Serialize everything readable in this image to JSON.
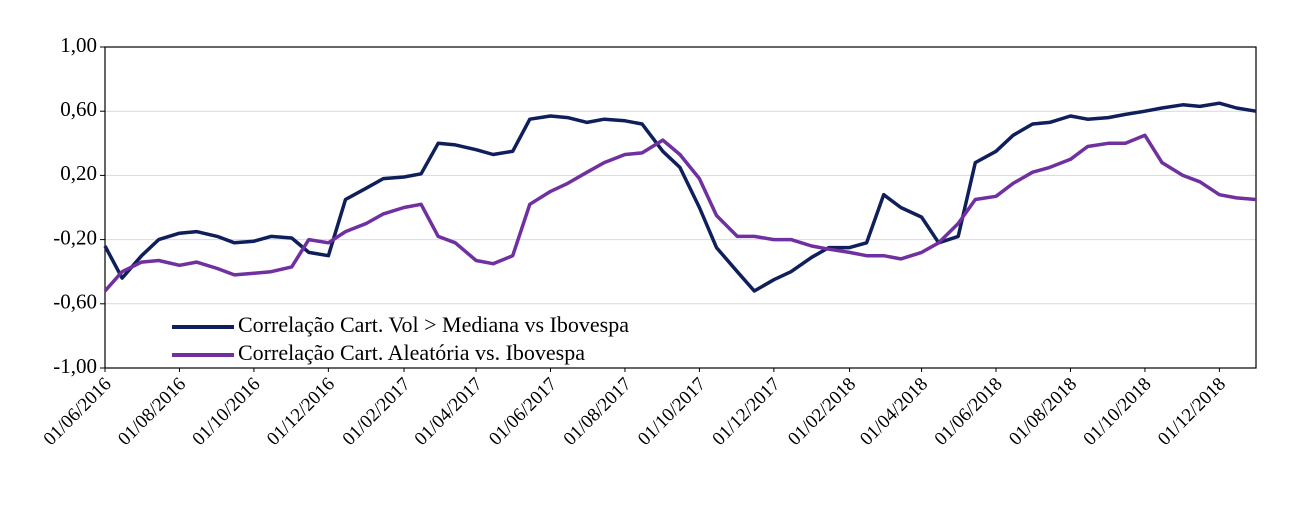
{
  "chart_data": {
    "type": "line",
    "x": [
      "2016-06-01",
      "2016-06-15",
      "2016-07-01",
      "2016-07-15",
      "2016-08-01",
      "2016-08-15",
      "2016-09-01",
      "2016-09-15",
      "2016-10-01",
      "2016-10-15",
      "2016-11-01",
      "2016-11-15",
      "2016-12-01",
      "2016-12-15",
      "2017-01-01",
      "2017-01-15",
      "2017-02-01",
      "2017-02-15",
      "2017-03-01",
      "2017-03-15",
      "2017-04-01",
      "2017-04-15",
      "2017-05-01",
      "2017-05-15",
      "2017-06-01",
      "2017-06-15",
      "2017-07-01",
      "2017-07-15",
      "2017-08-01",
      "2017-08-15",
      "2017-09-01",
      "2017-09-15",
      "2017-10-01",
      "2017-10-15",
      "2017-11-01",
      "2017-11-15",
      "2017-12-01",
      "2017-12-15",
      "2018-01-01",
      "2018-01-15",
      "2018-02-01",
      "2018-02-15",
      "2018-03-01",
      "2018-03-15",
      "2018-04-01",
      "2018-04-15",
      "2018-05-01",
      "2018-05-15",
      "2018-06-01",
      "2018-06-15",
      "2018-07-01",
      "2018-07-15",
      "2018-08-01",
      "2018-08-15",
      "2018-09-01",
      "2018-09-15",
      "2018-10-01",
      "2018-10-15",
      "2018-11-01",
      "2018-11-15",
      "2018-12-01",
      "2018-12-15",
      "2018-12-31"
    ],
    "series": [
      {
        "name": "Correlação Cart. Vol > Mediana vs Ibovespa",
        "color": "#0f1f5c",
        "values": [
          -0.24,
          -0.44,
          -0.3,
          -0.2,
          -0.16,
          -0.15,
          -0.18,
          -0.22,
          -0.21,
          -0.18,
          -0.19,
          -0.28,
          -0.3,
          0.05,
          0.12,
          0.18,
          0.19,
          0.21,
          0.4,
          0.39,
          0.36,
          0.33,
          0.35,
          0.55,
          0.57,
          0.56,
          0.53,
          0.55,
          0.54,
          0.52,
          0.35,
          0.25,
          0.0,
          -0.25,
          -0.4,
          -0.52,
          -0.45,
          -0.4,
          -0.31,
          -0.25,
          -0.25,
          -0.22,
          0.08,
          0.0,
          -0.06,
          -0.22,
          -0.18,
          0.28,
          0.35,
          0.45,
          0.52,
          0.53,
          0.57,
          0.55,
          0.56,
          0.58,
          0.6,
          0.62,
          0.64,
          0.63,
          0.65,
          0.62,
          0.6
        ]
      },
      {
        "name": "Correlação Cart. Aleatória vs. Ibovespa",
        "color": "#7030a0",
        "values": [
          -0.52,
          -0.4,
          -0.34,
          -0.33,
          -0.36,
          -0.34,
          -0.38,
          -0.42,
          -0.41,
          -0.4,
          -0.37,
          -0.2,
          -0.22,
          -0.15,
          -0.1,
          -0.04,
          0.0,
          0.02,
          -0.18,
          -0.22,
          -0.33,
          -0.35,
          -0.3,
          0.02,
          0.1,
          0.15,
          0.22,
          0.28,
          0.33,
          0.34,
          0.42,
          0.33,
          0.18,
          -0.05,
          -0.18,
          -0.18,
          -0.2,
          -0.2,
          -0.24,
          -0.26,
          -0.28,
          -0.3,
          -0.3,
          -0.32,
          -0.28,
          -0.22,
          -0.1,
          0.05,
          0.07,
          0.15,
          0.22,
          0.25,
          0.3,
          0.38,
          0.4,
          0.4,
          0.45,
          0.28,
          0.2,
          0.16,
          0.08,
          0.06,
          0.05
        ]
      }
    ],
    "xlim": [
      "2016-06-01",
      "2018-12-31"
    ],
    "xticks": [
      {
        "value": "2016-06-01",
        "label": "01/06/2016"
      },
      {
        "value": "2016-08-01",
        "label": "01/08/2016"
      },
      {
        "value": "2016-10-01",
        "label": "01/10/2016"
      },
      {
        "value": "2016-12-01",
        "label": "01/12/2016"
      },
      {
        "value": "2017-02-01",
        "label": "01/02/2017"
      },
      {
        "value": "2017-04-01",
        "label": "01/04/2017"
      },
      {
        "value": "2017-06-01",
        "label": "01/06/2017"
      },
      {
        "value": "2017-08-01",
        "label": "01/08/2017"
      },
      {
        "value": "2017-10-01",
        "label": "01/10/2017"
      },
      {
        "value": "2017-12-01",
        "label": "01/12/2017"
      },
      {
        "value": "2018-02-01",
        "label": "01/02/2018"
      },
      {
        "value": "2018-04-01",
        "label": "01/04/2018"
      },
      {
        "value": "2018-06-01",
        "label": "01/06/2018"
      },
      {
        "value": "2018-08-01",
        "label": "01/08/2018"
      },
      {
        "value": "2018-10-01",
        "label": "01/10/2018"
      },
      {
        "value": "2018-12-01",
        "label": "01/12/2018"
      }
    ],
    "ylim": [
      -1,
      1
    ],
    "yticks": [
      {
        "value": -1,
        "label": "-1,00"
      },
      {
        "value": -0.6,
        "label": "-0,60"
      },
      {
        "value": -0.2,
        "label": "-0,20"
      },
      {
        "value": 0.2,
        "label": "0,20"
      },
      {
        "value": 0.6,
        "label": "0,60"
      },
      {
        "value": 1,
        "label": "1,00"
      }
    ],
    "grid": true,
    "legend": "lower-left"
  }
}
